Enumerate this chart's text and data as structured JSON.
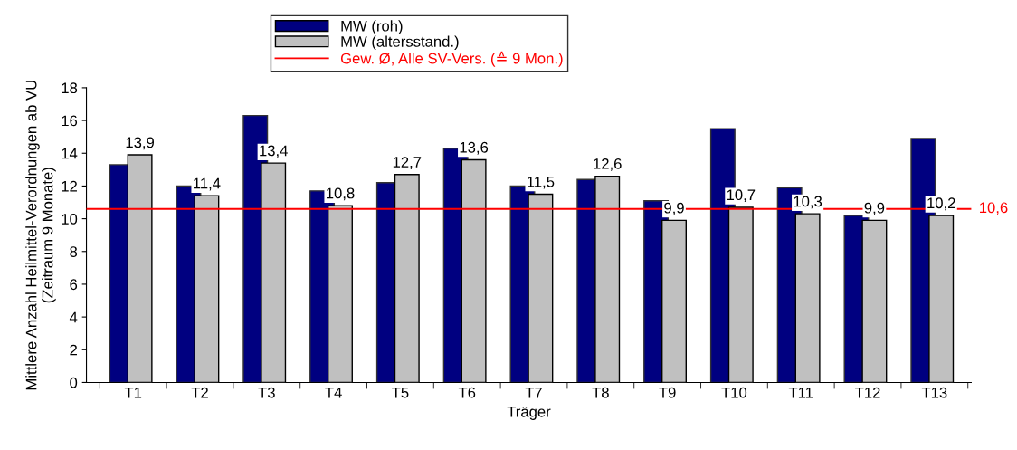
{
  "chart_data": {
    "type": "bar",
    "xlabel": "Träger",
    "ylabel": "Mittlere Anzahl Heilmittel-Verordnungen ab VU\n(Zeitraum 9 Monate)",
    "categories": [
      "T1",
      "T2",
      "T3",
      "T4",
      "T5",
      "T6",
      "T7",
      "T8",
      "T9",
      "T10",
      "T11",
      "T12",
      "T13"
    ],
    "series": [
      {
        "name": "MW (roh)",
        "color": "#000080",
        "values": [
          13.3,
          12.0,
          16.3,
          11.7,
          12.2,
          14.3,
          12.0,
          12.4,
          11.1,
          15.5,
          11.9,
          10.2,
          14.9
        ]
      },
      {
        "name": "MW (altersstand.)",
        "color": "#c0c0c0",
        "values": [
          13.9,
          11.4,
          13.4,
          10.8,
          12.7,
          13.6,
          11.5,
          12.6,
          9.9,
          10.7,
          10.3,
          9.9,
          10.2
        ],
        "value_labels": [
          "13,9",
          "11,4",
          "13,4",
          "10,8",
          "12,7",
          "13,6",
          "11,5",
          "12,6",
          "9,9",
          "10,7",
          "10,3",
          "9,9",
          "10,2"
        ]
      }
    ],
    "ref_lines": [
      {
        "axis": "y",
        "value": 10.6,
        "label": "Gew. Ø, Alle SV-Vers. (≙ 9 Mon.)",
        "color": "#ff0000"
      }
    ],
    "annotations": [
      "10,6"
    ],
    "ylim": [
      0,
      18
    ],
    "yticks": [
      0,
      2,
      4,
      6,
      8,
      10,
      12,
      14,
      16,
      18
    ],
    "grid": false,
    "legend": "top"
  }
}
